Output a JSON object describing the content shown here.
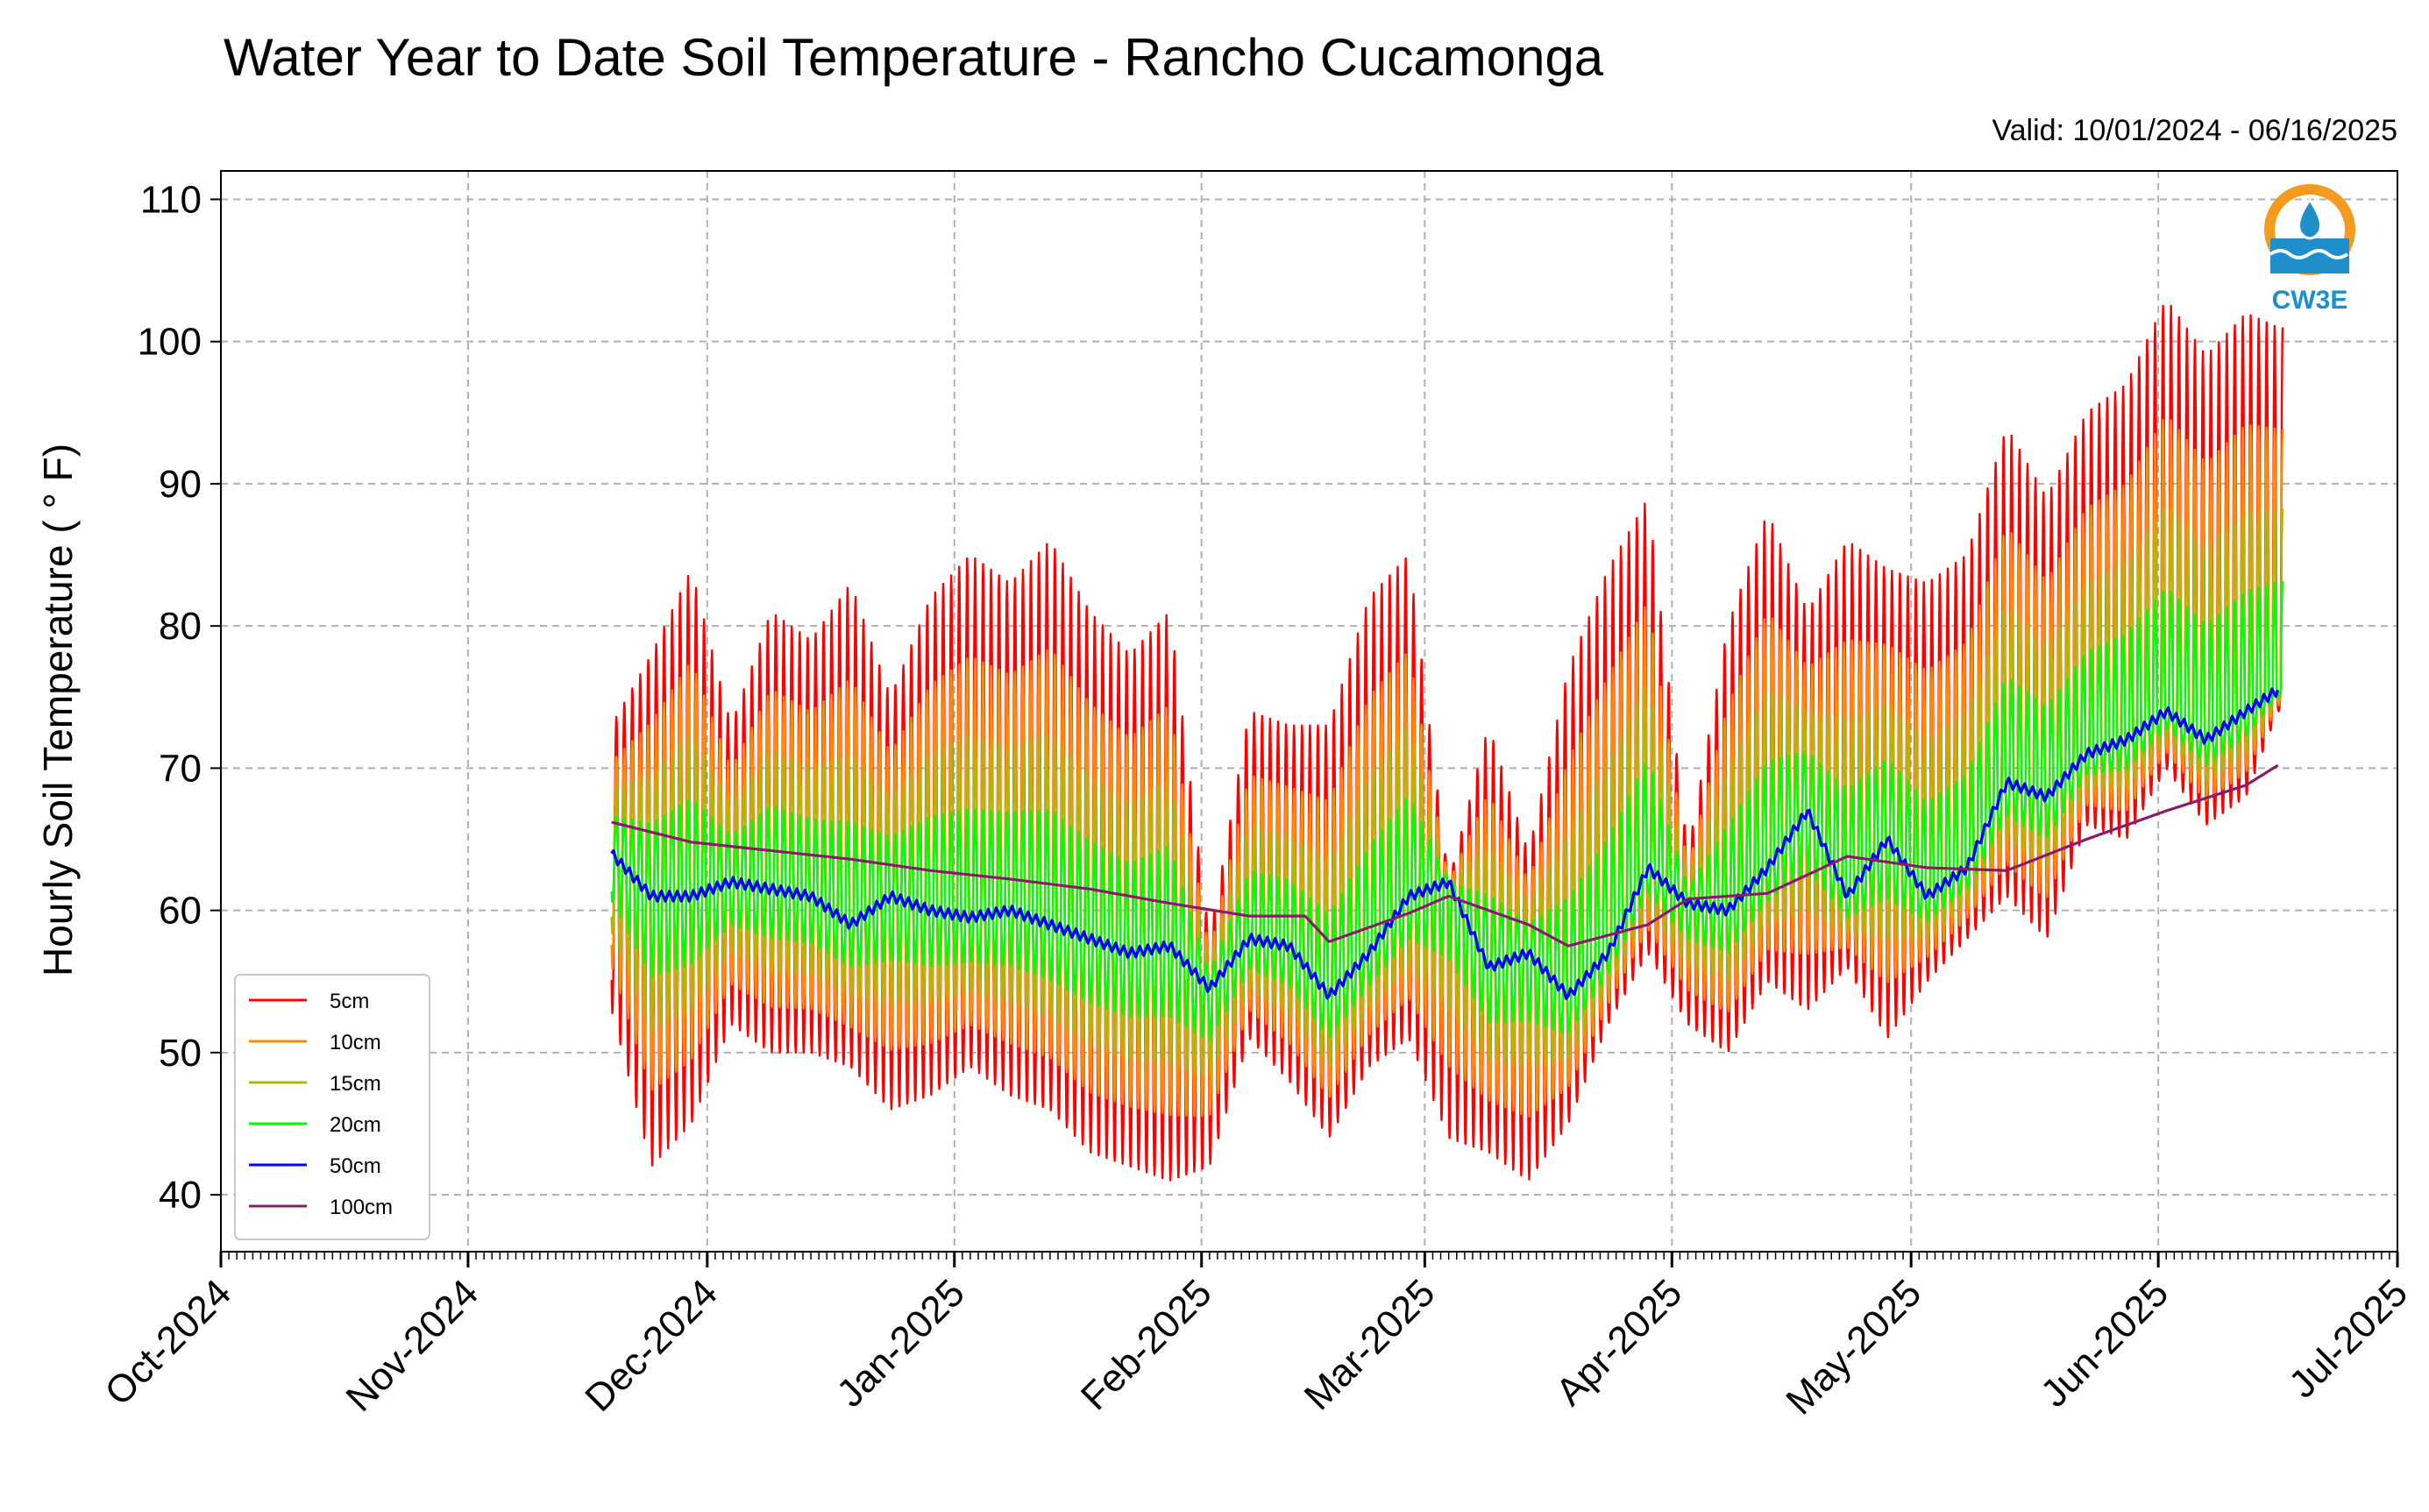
{
  "logo": {
    "text": "CW3E",
    "colors": {
      "ring": "#f39a1f",
      "wave": "#1f8fc9",
      "drop": "#1f8fc9"
    }
  },
  "chart_data": {
    "type": "line",
    "title": "Water Year to Date Soil Temperature - Rancho Cucamonga",
    "subtitle": "Valid: 10/01/2024 - 06/16/2025",
    "xlabel": "",
    "ylabel": "Hourly Soil Temperature ( ° F)",
    "xlim": [
      "2024-10-01",
      "2025-07-01"
    ],
    "ylim": [
      36,
      112
    ],
    "yticks": [
      40,
      50,
      60,
      70,
      80,
      90,
      100,
      110
    ],
    "xticks": [
      {
        "date": "2024-10-01",
        "label": "Oct-2024"
      },
      {
        "date": "2024-11-01",
        "label": "Nov-2024"
      },
      {
        "date": "2024-12-01",
        "label": "Dec-2024"
      },
      {
        "date": "2025-01-01",
        "label": "Jan-2025"
      },
      {
        "date": "2025-02-01",
        "label": "Feb-2025"
      },
      {
        "date": "2025-03-01",
        "label": "Mar-2025"
      },
      {
        "date": "2025-04-01",
        "label": "Apr-2025"
      },
      {
        "date": "2025-05-01",
        "label": "May-2025"
      },
      {
        "date": "2025-06-01",
        "label": "Jun-2025"
      },
      {
        "date": "2025-07-01",
        "label": "Jul-2025"
      }
    ],
    "grid": true,
    "legend_position": "lower-left",
    "daily_envelopes": {
      "dates": [
        "2024-11-19",
        "2024-11-24",
        "2024-11-29",
        "2024-12-04",
        "2024-12-09",
        "2024-12-14",
        "2024-12-19",
        "2024-12-24",
        "2024-12-29",
        "2025-01-03",
        "2025-01-08",
        "2025-01-13",
        "2025-01-18",
        "2025-01-23",
        "2025-01-28",
        "2025-02-02",
        "2025-02-07",
        "2025-02-12",
        "2025-02-17",
        "2025-02-22",
        "2025-02-27",
        "2025-03-04",
        "2025-03-09",
        "2025-03-14",
        "2025-03-19",
        "2025-03-24",
        "2025-03-29",
        "2025-04-03",
        "2025-04-08",
        "2025-04-13",
        "2025-04-18",
        "2025-04-23",
        "2025-04-28",
        "2025-05-03",
        "2025-05-08",
        "2025-05-13",
        "2025-05-18",
        "2025-05-23",
        "2025-05-28",
        "2025-06-02",
        "2025-06-07",
        "2025-06-12",
        "2025-06-16"
      ],
      "max_5cm": [
        73,
        78,
        84,
        73,
        81,
        79,
        83,
        75,
        82,
        85,
        83,
        86,
        81,
        78,
        81,
        58,
        74,
        73,
        73,
        82,
        85,
        62,
        73,
        64,
        77,
        84,
        89,
        64,
        80,
        88,
        81,
        86,
        84,
        83,
        85,
        94,
        89,
        95,
        97,
        103,
        99,
        102,
        101
      ],
      "min_5cm": [
        53,
        42,
        45,
        52,
        50,
        50,
        49,
        46,
        47,
        49,
        47,
        46,
        43,
        42,
        41,
        42,
        51,
        48,
        44,
        49,
        51,
        44,
        43,
        41,
        45,
        52,
        57,
        52,
        50,
        55,
        53,
        56,
        51,
        55,
        58,
        61,
        58,
        66,
        65,
        70,
        66,
        68,
        74
      ]
    },
    "series": [
      {
        "name": "5cm",
        "color": "#ff0000",
        "type": "diurnal-band"
      },
      {
        "name": "10cm",
        "color": "#ff8c00",
        "type": "diurnal-band"
      },
      {
        "name": "15cm",
        "color": "#b5b500",
        "type": "diurnal-band"
      },
      {
        "name": "20cm",
        "color": "#00ff00",
        "type": "diurnal-band"
      },
      {
        "name": "50cm",
        "color": "#0000ff",
        "x": [
          "2024-11-19",
          "2024-11-24",
          "2024-11-29",
          "2024-12-04",
          "2024-12-09",
          "2024-12-14",
          "2024-12-19",
          "2024-12-24",
          "2024-12-29",
          "2025-01-03",
          "2025-01-08",
          "2025-01-13",
          "2025-01-18",
          "2025-01-23",
          "2025-01-28",
          "2025-02-02",
          "2025-02-07",
          "2025-02-12",
          "2025-02-17",
          "2025-02-22",
          "2025-02-27",
          "2025-03-04",
          "2025-03-09",
          "2025-03-14",
          "2025-03-19",
          "2025-03-24",
          "2025-03-29",
          "2025-04-03",
          "2025-04-08",
          "2025-04-13",
          "2025-04-18",
          "2025-04-23",
          "2025-04-28",
          "2025-05-03",
          "2025-05-08",
          "2025-05-13",
          "2025-05-18",
          "2025-05-23",
          "2025-05-28",
          "2025-06-02",
          "2025-06-07",
          "2025-06-12",
          "2025-06-16"
        ],
        "y": [
          64,
          61,
          61,
          62,
          61.5,
          61,
          59,
          61,
          60,
          59.5,
          60,
          59,
          58,
          57,
          57.5,
          54.5,
          58,
          57.5,
          54,
          57,
          61,
          62,
          56,
          57,
          54,
          57,
          63,
          60.5,
          60,
          63,
          67,
          61,
          65,
          61,
          63,
          69,
          68,
          71,
          72,
          74,
          72,
          74,
          75.5
        ]
      },
      {
        "name": "100cm",
        "color": "#8b1a6b",
        "x": [
          "2024-11-19",
          "2024-11-29",
          "2024-12-09",
          "2024-12-19",
          "2024-12-29",
          "2025-01-08",
          "2025-01-18",
          "2025-01-28",
          "2025-02-07",
          "2025-02-14",
          "2025-02-17",
          "2025-02-27",
          "2025-03-04",
          "2025-03-14",
          "2025-03-19",
          "2025-03-29",
          "2025-04-03",
          "2025-04-13",
          "2025-04-23",
          "2025-05-03",
          "2025-05-13",
          "2025-05-23",
          "2025-06-02",
          "2025-06-12",
          "2025-06-16"
        ],
        "y": [
          66.2,
          64.8,
          64.2,
          63.6,
          62.8,
          62.2,
          61.5,
          60.5,
          59.6,
          59.6,
          57.8,
          59.8,
          61,
          59,
          57.5,
          59,
          60.8,
          61.2,
          63.8,
          63,
          62.8,
          65,
          67,
          68.8,
          70.2
        ]
      }
    ]
  }
}
